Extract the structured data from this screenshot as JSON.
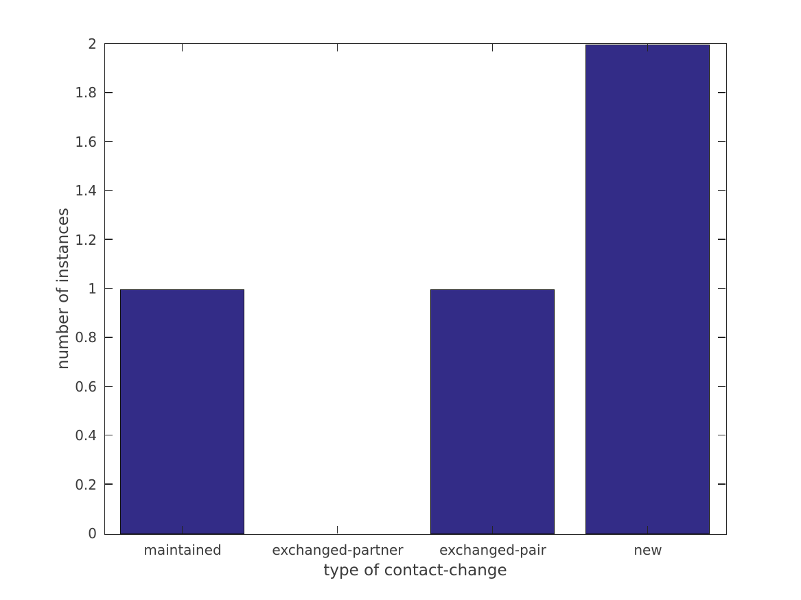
{
  "chart_data": {
    "type": "bar",
    "title": "",
    "categories": [
      "maintained",
      "exchanged-partner",
      "exchanged-pair",
      "new"
    ],
    "values": [
      1,
      0,
      1,
      2
    ],
    "xlabel": "type of contact-change",
    "ylabel": "number of instances",
    "ylim": [
      0,
      2
    ],
    "ytick_values": [
      0,
      0.2,
      0.4,
      0.6,
      0.8,
      1,
      1.2,
      1.4,
      1.6,
      1.8,
      2
    ],
    "ytick_labels": [
      "0",
      "0.2",
      "0.4",
      "0.6",
      "0.8",
      "1",
      "1.2",
      "1.4",
      "1.6",
      "1.8",
      "2"
    ],
    "grid": false,
    "legend": "none",
    "ticks_inward_all_spines": true,
    "colors": {
      "bar_fill": "#332c87",
      "bar_edge": "#111111",
      "axis": "#262626",
      "text": "#3a3a3a",
      "background": "#ffffff"
    }
  }
}
